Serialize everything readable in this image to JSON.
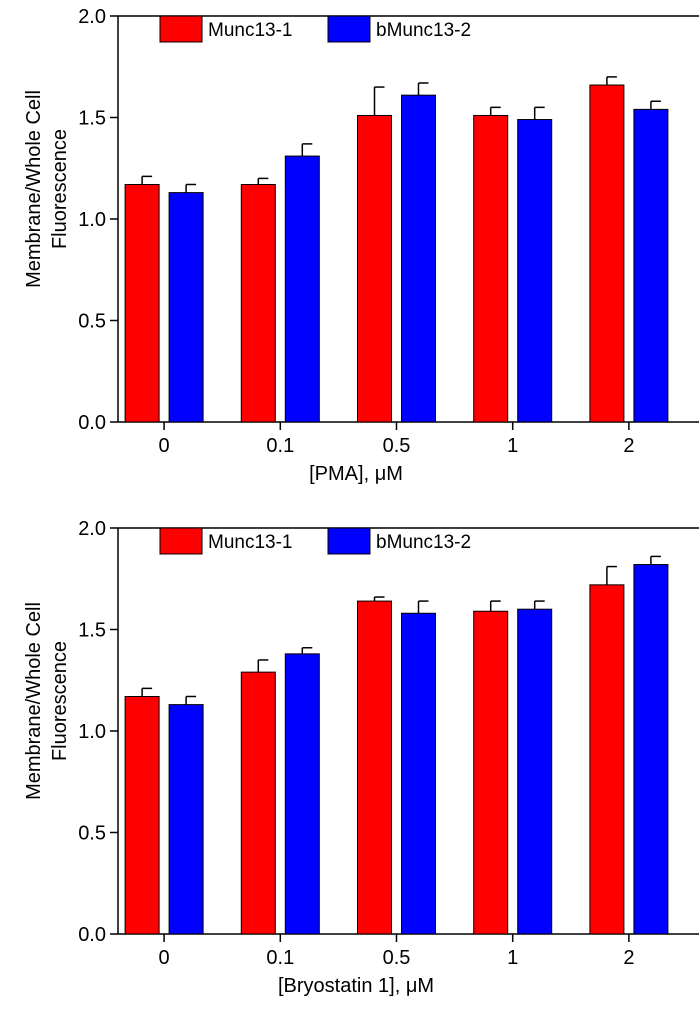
{
  "chart_data": [
    {
      "type": "bar",
      "categories": [
        "0",
        "0.1",
        "0.5",
        "1",
        "2"
      ],
      "series": [
        {
          "name": "Munc13-1",
          "values": [
            1.17,
            1.17,
            1.51,
            1.51,
            1.66
          ],
          "errors": [
            0.04,
            0.03,
            0.14,
            0.04,
            0.04
          ],
          "color": "#ff0000"
        },
        {
          "name": "bMunc13-2",
          "values": [
            1.13,
            1.31,
            1.61,
            1.49,
            1.54
          ],
          "errors": [
            0.04,
            0.06,
            0.06,
            0.06,
            0.04
          ],
          "color": "#0000ff"
        }
      ],
      "xlabel": "[PMA], μM",
      "ylabel": "Membrane/Whole Cell Fluorescence",
      "ylabel_lines": [
        "Membrane/Whole Cell",
        "Fluorescence"
      ],
      "ylim": [
        0,
        2.0
      ],
      "yticks": [
        "0.0",
        "0.5",
        "1.0",
        "1.5",
        "2.0"
      ],
      "legend": "top-left",
      "grid": false
    },
    {
      "type": "bar",
      "categories": [
        "0",
        "0.1",
        "0.5",
        "1",
        "2"
      ],
      "series": [
        {
          "name": "Munc13-1",
          "values": [
            1.17,
            1.29,
            1.64,
            1.59,
            1.72
          ],
          "errors": [
            0.04,
            0.06,
            0.02,
            0.05,
            0.09
          ],
          "color": "#ff0000"
        },
        {
          "name": "bMunc13-2",
          "values": [
            1.13,
            1.38,
            1.58,
            1.6,
            1.82
          ],
          "errors": [
            0.04,
            0.03,
            0.06,
            0.04,
            0.04
          ],
          "color": "#0000ff"
        }
      ],
      "xlabel": "[Bryostatin 1], μM",
      "ylabel": "Membrane/Whole Cell Fluorescence",
      "ylabel_lines": [
        "Membrane/Whole Cell",
        "Fluorescence"
      ],
      "ylim": [
        0,
        2.0
      ],
      "yticks": [
        "0.0",
        "0.5",
        "1.0",
        "1.5",
        "2.0"
      ],
      "legend": "top-left",
      "grid": false
    }
  ]
}
